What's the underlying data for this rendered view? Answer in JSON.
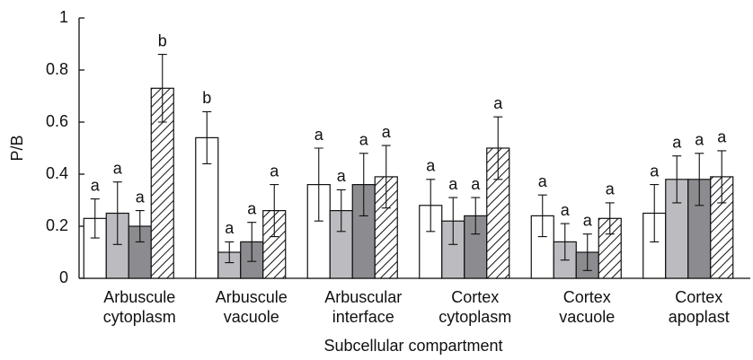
{
  "chart_data": {
    "type": "bar",
    "y_label": "P/B",
    "x_label": "Subcellular compartment",
    "categories": [
      "Arbuscule cytoplasm",
      "Arbuscule vacuole",
      "Arbuscular interface",
      "Cortex cytoplasm",
      "Cortex vacuole",
      "Cortex apoplast"
    ],
    "series": [
      {
        "color": "#ffffff",
        "hatch": false,
        "values": [
          0.23,
          0.54,
          0.36,
          0.28,
          0.24,
          0.25
        ],
        "errors": [
          0.075,
          0.1,
          0.14,
          0.1,
          0.08,
          0.11
        ],
        "letters": [
          "a",
          "b",
          "a",
          "a",
          "a",
          "a"
        ]
      },
      {
        "color": "#bcbcc0",
        "hatch": false,
        "values": [
          0.25,
          0.1,
          0.26,
          0.22,
          0.14,
          0.38
        ],
        "errors": [
          0.12,
          0.04,
          0.08,
          0.09,
          0.07,
          0.09
        ],
        "letters": [
          "a",
          "a",
          "a",
          "a",
          "a",
          "a"
        ]
      },
      {
        "color": "#8c8c90",
        "hatch": false,
        "values": [
          0.2,
          0.14,
          0.36,
          0.24,
          0.1,
          0.38
        ],
        "errors": [
          0.06,
          0.075,
          0.12,
          0.07,
          0.07,
          0.1
        ],
        "letters": [
          "a",
          "a",
          "a",
          "a",
          "a",
          "a"
        ]
      },
      {
        "color": "#ffffff",
        "hatch": true,
        "values": [
          0.73,
          0.26,
          0.39,
          0.5,
          0.23,
          0.39
        ],
        "errors": [
          0.13,
          0.1,
          0.12,
          0.12,
          0.06,
          0.1
        ],
        "letters": [
          "b",
          "a",
          "a",
          "a",
          "a",
          "a"
        ]
      }
    ],
    "ylim": [
      0,
      1
    ],
    "yticks": [
      0,
      0.2,
      0.4,
      0.6,
      0.8,
      1
    ]
  }
}
